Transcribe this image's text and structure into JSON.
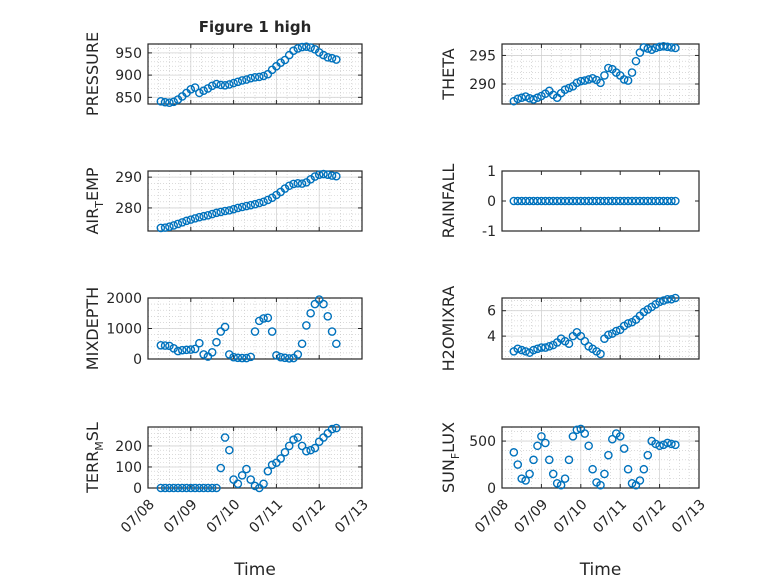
{
  "figure": {
    "title": "Figure 1 high"
  },
  "chart_data": [
    {
      "type": "scatter",
      "title": "Figure 1 high",
      "xlabel": "",
      "ylabel": "PRESSURE",
      "xlim": [
        "07/08",
        "07/13"
      ],
      "ylim": [
        835,
        970
      ],
      "yticks": [
        "850",
        "900",
        "950"
      ],
      "grid": true,
      "x": [
        0.3,
        0.4,
        0.5,
        0.6,
        0.7,
        0.8,
        0.9,
        1.0,
        1.1,
        1.2,
        1.3,
        1.4,
        1.5,
        1.6,
        1.7,
        1.8,
        1.9,
        2.0,
        2.1,
        2.2,
        2.3,
        2.4,
        2.5,
        2.6,
        2.7,
        2.8,
        2.9,
        3.0,
        3.1,
        3.2,
        3.3,
        3.4,
        3.5,
        3.6,
        3.7,
        3.8,
        3.9,
        4.0,
        4.1,
        4.2,
        4.3,
        4.4
      ],
      "y": [
        841,
        839,
        838,
        840,
        845,
        852,
        860,
        868,
        872,
        860,
        865,
        870,
        876,
        880,
        878,
        877,
        879,
        882,
        885,
        888,
        890,
        893,
        895,
        896,
        898,
        902,
        912,
        920,
        928,
        934,
        945,
        955,
        960,
        963,
        964,
        962,
        958,
        951,
        945,
        940,
        938,
        935
      ]
    },
    {
      "type": "scatter",
      "title": "",
      "xlabel": "",
      "ylabel": "THETA",
      "xlim": [
        "07/08",
        "07/13"
      ],
      "ylim": [
        286.5,
        297
      ],
      "yticks": [
        "290",
        "295"
      ],
      "grid": true,
      "x": [
        0.3,
        0.4,
        0.5,
        0.6,
        0.7,
        0.8,
        0.9,
        1.0,
        1.1,
        1.2,
        1.3,
        1.4,
        1.5,
        1.6,
        1.7,
        1.8,
        1.9,
        2.0,
        2.1,
        2.2,
        2.3,
        2.4,
        2.5,
        2.6,
        2.7,
        2.8,
        2.9,
        3.0,
        3.1,
        3.2,
        3.3,
        3.4,
        3.5,
        3.6,
        3.7,
        3.8,
        3.9,
        4.0,
        4.1,
        4.2,
        4.3,
        4.4
      ],
      "y": [
        287,
        287.4,
        287.6,
        287.8,
        287.5,
        287.3,
        287.6,
        287.9,
        288.3,
        288.8,
        288.1,
        287.6,
        288.4,
        289.0,
        289.3,
        289.6,
        290.2,
        290.5,
        290.6,
        290.8,
        291.0,
        290.7,
        290.2,
        291.5,
        292.8,
        292.6,
        292.0,
        291.5,
        290.8,
        290.6,
        292.0,
        294.0,
        295.5,
        296.4,
        296.2,
        296.0,
        296.3,
        296.5,
        296.6,
        296.5,
        296.4,
        296.3
      ]
    },
    {
      "type": "scatter",
      "title": "",
      "xlabel": "",
      "ylabel": "AIR_TEMP",
      "xlim": [
        "07/08",
        "07/13"
      ],
      "ylim": [
        272.5,
        292
      ],
      "yticks": [
        "280",
        "290"
      ],
      "grid": true,
      "x": [
        0.3,
        0.4,
        0.5,
        0.6,
        0.7,
        0.8,
        0.9,
        1.0,
        1.1,
        1.2,
        1.3,
        1.4,
        1.5,
        1.6,
        1.7,
        1.8,
        1.9,
        2.0,
        2.1,
        2.2,
        2.3,
        2.4,
        2.5,
        2.6,
        2.7,
        2.8,
        2.9,
        3.0,
        3.1,
        3.2,
        3.3,
        3.4,
        3.5,
        3.6,
        3.7,
        3.8,
        3.9,
        4.0,
        4.1,
        4.2,
        4.3,
        4.4
      ],
      "y": [
        273.5,
        273.6,
        273.9,
        274.3,
        274.8,
        275.3,
        275.8,
        276.2,
        276.6,
        277.0,
        277.3,
        277.6,
        278.0,
        278.4,
        278.7,
        279.0,
        279.2,
        279.6,
        280.0,
        280.3,
        280.6,
        280.9,
        281.2,
        281.6,
        282.0,
        282.6,
        283.3,
        284.2,
        285.2,
        286.3,
        287.2,
        287.8,
        288.0,
        287.9,
        288.3,
        289.3,
        290.2,
        290.8,
        291.0,
        290.8,
        290.5,
        290.3
      ]
    },
    {
      "type": "scatter",
      "title": "",
      "xlabel": "",
      "ylabel": "RAINFALL",
      "xlim": [
        "07/08",
        "07/13"
      ],
      "ylim": [
        -1,
        1
      ],
      "yticks": [
        "-1",
        "0",
        "1"
      ],
      "grid": false,
      "x": [
        0.3,
        0.4,
        0.5,
        0.6,
        0.7,
        0.8,
        0.9,
        1.0,
        1.1,
        1.2,
        1.3,
        1.4,
        1.5,
        1.6,
        1.7,
        1.8,
        1.9,
        2.0,
        2.1,
        2.2,
        2.3,
        2.4,
        2.5,
        2.6,
        2.7,
        2.8,
        2.9,
        3.0,
        3.1,
        3.2,
        3.3,
        3.4,
        3.5,
        3.6,
        3.7,
        3.8,
        3.9,
        4.0,
        4.1,
        4.2,
        4.3,
        4.4
      ],
      "y": [
        0,
        0,
        0,
        0,
        0,
        0,
        0,
        0,
        0,
        0,
        0,
        0,
        0,
        0,
        0,
        0,
        0,
        0,
        0,
        0,
        0,
        0,
        0,
        0,
        0,
        0,
        0,
        0,
        0,
        0,
        0,
        0,
        0,
        0,
        0,
        0,
        0,
        0,
        0,
        0,
        0,
        0
      ]
    },
    {
      "type": "scatter",
      "title": "",
      "xlabel": "",
      "ylabel": "MIXDEPTH",
      "xlim": [
        "07/08",
        "07/13"
      ],
      "ylim": [
        0,
        2000
      ],
      "yticks": [
        "0",
        "1000",
        "2000"
      ],
      "grid": true,
      "x": [
        0.3,
        0.4,
        0.5,
        0.6,
        0.7,
        0.8,
        0.9,
        1.0,
        1.1,
        1.2,
        1.3,
        1.4,
        1.5,
        1.6,
        1.7,
        1.8,
        1.9,
        2.0,
        2.1,
        2.2,
        2.3,
        2.4,
        2.5,
        2.6,
        2.7,
        2.8,
        2.9,
        3.0,
        3.1,
        3.2,
        3.3,
        3.4,
        3.5,
        3.6,
        3.7,
        3.8,
        3.9,
        4.0,
        4.1,
        4.2,
        4.3,
        4.4
      ],
      "y": [
        450,
        440,
        430,
        350,
        260,
        290,
        300,
        310,
        330,
        520,
        150,
        80,
        220,
        550,
        900,
        1050,
        150,
        60,
        40,
        30,
        30,
        70,
        900,
        1250,
        1330,
        1350,
        900,
        120,
        60,
        40,
        20,
        30,
        150,
        500,
        1100,
        1500,
        1800,
        1950,
        1800,
        1400,
        900,
        500
      ]
    },
    {
      "type": "scatter",
      "title": "",
      "xlabel": "",
      "ylabel": "H2OMIXRA",
      "xlim": [
        "07/08",
        "07/13"
      ],
      "ylim": [
        2.2,
        7
      ],
      "yticks": [
        "4",
        "6"
      ],
      "grid": true,
      "x": [
        0.3,
        0.4,
        0.5,
        0.6,
        0.7,
        0.8,
        0.9,
        1.0,
        1.1,
        1.2,
        1.3,
        1.4,
        1.5,
        1.6,
        1.7,
        1.8,
        1.9,
        2.0,
        2.1,
        2.2,
        2.3,
        2.4,
        2.5,
        2.6,
        2.7,
        2.8,
        2.9,
        3.0,
        3.1,
        3.2,
        3.3,
        3.4,
        3.5,
        3.6,
        3.7,
        3.8,
        3.9,
        4.0,
        4.1,
        4.2,
        4.3,
        4.4
      ],
      "y": [
        2.8,
        3.0,
        2.9,
        2.8,
        2.7,
        2.9,
        3.0,
        3.1,
        3.1,
        3.2,
        3.3,
        3.5,
        3.8,
        3.6,
        3.4,
        4.0,
        4.3,
        4.0,
        3.6,
        3.2,
        3.0,
        2.8,
        2.6,
        3.8,
        4.1,
        4.2,
        4.4,
        4.5,
        4.8,
        5.0,
        5.1,
        5.3,
        5.6,
        5.9,
        6.1,
        6.3,
        6.5,
        6.7,
        6.8,
        6.9,
        6.9,
        7.0
      ]
    },
    {
      "type": "scatter",
      "title": "",
      "xlabel": "Time",
      "ylabel": "TERR_MSL",
      "xlim": [
        "07/08",
        "07/13"
      ],
      "ylim": [
        0,
        290
      ],
      "yticks": [
        "0",
        "100",
        "200"
      ],
      "xticks": [
        "07/08",
        "07/09",
        "07/10",
        "07/11",
        "07/12",
        "07/13"
      ],
      "grid": true,
      "x": [
        0.3,
        0.4,
        0.5,
        0.6,
        0.7,
        0.8,
        0.9,
        1.0,
        1.1,
        1.2,
        1.3,
        1.4,
        1.5,
        1.6,
        1.7,
        1.8,
        1.9,
        2.0,
        2.1,
        2.2,
        2.3,
        2.4,
        2.5,
        2.6,
        2.7,
        2.8,
        2.9,
        3.0,
        3.1,
        3.2,
        3.3,
        3.4,
        3.5,
        3.6,
        3.7,
        3.8,
        3.9,
        4.0,
        4.1,
        4.2,
        4.3,
        4.4
      ],
      "y": [
        0,
        0,
        0,
        0,
        0,
        0,
        0,
        0,
        0,
        0,
        0,
        0,
        0,
        0,
        95,
        240,
        180,
        40,
        20,
        60,
        90,
        40,
        10,
        0,
        20,
        80,
        110,
        120,
        140,
        170,
        200,
        230,
        240,
        200,
        175,
        180,
        190,
        220,
        240,
        260,
        280,
        285
      ]
    },
    {
      "type": "scatter",
      "title": "",
      "xlabel": "Time",
      "ylabel": "SUN_FLUX",
      "xlim": [
        "07/08",
        "07/13"
      ],
      "ylim": [
        0,
        650
      ],
      "yticks": [
        "0",
        "500"
      ],
      "xticks": [
        "07/08",
        "07/09",
        "07/10",
        "07/11",
        "07/12",
        "07/13"
      ],
      "grid": true,
      "x": [
        0.3,
        0.4,
        0.5,
        0.6,
        0.7,
        0.8,
        0.9,
        1.0,
        1.1,
        1.2,
        1.3,
        1.4,
        1.5,
        1.6,
        1.7,
        1.8,
        1.9,
        2.0,
        2.1,
        2.2,
        2.3,
        2.4,
        2.5,
        2.6,
        2.7,
        2.8,
        2.9,
        3.0,
        3.1,
        3.2,
        3.3,
        3.4,
        3.5,
        3.6,
        3.7,
        3.8,
        3.9,
        4.0,
        4.1,
        4.2,
        4.3,
        4.4
      ],
      "y": [
        380,
        250,
        100,
        80,
        150,
        300,
        450,
        550,
        480,
        300,
        150,
        50,
        30,
        100,
        300,
        550,
        620,
        630,
        580,
        450,
        200,
        60,
        30,
        150,
        350,
        520,
        580,
        550,
        420,
        200,
        50,
        30,
        80,
        200,
        350,
        500,
        470,
        450,
        460,
        480,
        470,
        460
      ]
    }
  ]
}
